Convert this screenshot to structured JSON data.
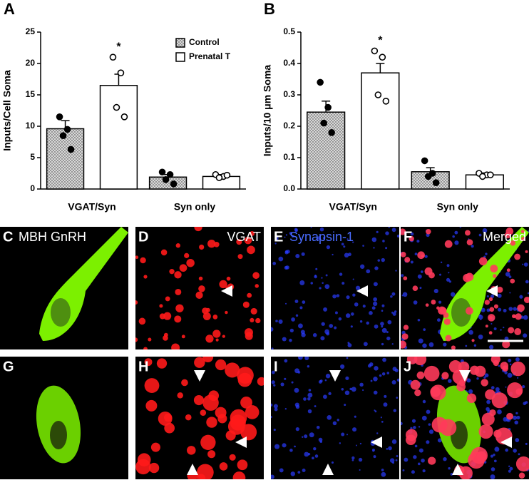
{
  "chart_data": [
    {
      "type": "bar",
      "panel_label": "A",
      "y_label": "Inputs/Cell Soma",
      "categories": [
        "VGAT/Syn",
        "Syn only"
      ],
      "series": [
        {
          "name": "Control",
          "color": "#d9d9d9",
          "values": [
            9.6,
            1.9
          ],
          "errors": [
            1.3,
            0.4
          ],
          "points": [
            [
              11.5,
              9.5,
              8.5,
              6.3
            ],
            [
              2.7,
              2.3,
              1.5,
              0.8
            ]
          ]
        },
        {
          "name": "Prenatal T",
          "color": "#ffffff",
          "values": [
            16.5,
            2.0
          ],
          "errors": [
            1.8,
            0.3
          ],
          "points": [
            [
              21,
              18.5,
              13,
              11.5
            ],
            [
              2.3,
              2.0,
              1.8,
              2.2
            ]
          ]
        }
      ],
      "annotation": "*",
      "ylim": [
        0,
        25
      ],
      "yticks": [
        0,
        5,
        10,
        15,
        20,
        25
      ],
      "legend": "top right"
    },
    {
      "type": "bar",
      "panel_label": "B",
      "y_label": "Inputs/10 μm Soma",
      "categories": [
        "VGAT/Syn",
        "Syn only"
      ],
      "series": [
        {
          "name": "Control",
          "color": "#d9d9d9",
          "values": [
            0.245,
            0.055
          ],
          "errors": [
            0.035,
            0.013
          ],
          "points": [
            [
              0.34,
              0.26,
              0.21,
              0.18
            ],
            [
              0.09,
              0.05,
              0.04,
              0.02
            ]
          ]
        },
        {
          "name": "Prenatal T",
          "color": "#ffffff",
          "values": [
            0.37,
            0.045
          ],
          "errors": [
            0.03,
            0.006
          ],
          "points": [
            [
              0.44,
              0.42,
              0.3,
              0.28
            ],
            [
              0.05,
              0.045,
              0.04,
              0.045
            ]
          ]
        }
      ],
      "annotation": "*",
      "ylim": [
        0,
        0.5
      ],
      "yticks": [
        {
          "value": 0,
          "label": "0.0"
        },
        0.1,
        0.2,
        0.3,
        0.4,
        0.5
      ]
    }
  ],
  "image_panels": [
    {
      "letter": "C",
      "label": "MBH GnRH"
    },
    {
      "letter": "D",
      "label": "VGAT"
    },
    {
      "letter": "E",
      "label": "Synapsin-1"
    },
    {
      "letter": "F",
      "label": "Merged"
    },
    {
      "letter": "G"
    },
    {
      "letter": "H"
    },
    {
      "letter": "I"
    },
    {
      "letter": "J"
    }
  ]
}
